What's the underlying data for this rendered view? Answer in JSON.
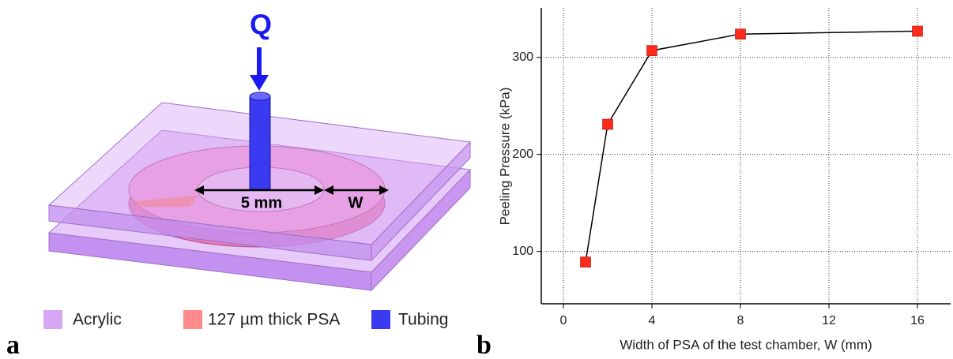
{
  "diagram": {
    "flow_label": "Q",
    "inner_dimension": "5 mm",
    "width_label": "W",
    "legend": [
      "Acrylic",
      "127 µm thick PSA",
      "Tubing"
    ],
    "panel_label": "a"
  },
  "chart_data": {
    "type": "line",
    "panel_label": "b",
    "x_label": "Width of PSA of the test chamber, W (mm)",
    "y_label": "Peeling Pressure (kPa)",
    "x": [
      1,
      2,
      4,
      8,
      16
    ],
    "values": [
      89,
      231,
      307,
      324,
      327
    ],
    "line_color": "#000000",
    "marker_color": "#ff2a1a",
    "xlim": [
      -1,
      17.5
    ],
    "xticks": [
      0,
      4,
      8,
      12,
      16
    ],
    "ylim": [
      46,
      351
    ],
    "yticks": [
      100,
      200,
      300
    ],
    "grid": true
  }
}
